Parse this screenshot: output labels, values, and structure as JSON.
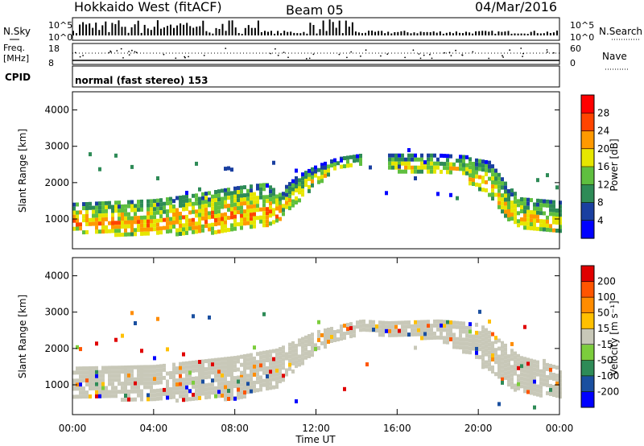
{
  "header": {
    "radar": "Hokkaido West (fitACF)",
    "beam": "Beam 05",
    "date": "04/Mar/2016"
  },
  "noise_panel": {
    "left_label": "N.Sky",
    "right_label": "N.Search",
    "ticks": [
      "10^5",
      "10^0"
    ]
  },
  "freq_panel": {
    "left_label_1": "Freq.",
    "left_label_2": "[MHz]",
    "right_label": "Nave",
    "left_ticks": [
      "18",
      "8"
    ],
    "right_ticks": [
      "60",
      "0"
    ]
  },
  "cpid": {
    "label": "CPID",
    "text": "normal (fast stereo) 153"
  },
  "colors": {
    "ground_scatter": "#c8c8b8",
    "power_scale": [
      "#0000ff",
      "#1a3fa0",
      "#2e8b57",
      "#5fbf3f",
      "#e6e600",
      "#ff9900",
      "#ff4400",
      "#ff0000"
    ],
    "velocity_scale": [
      "#e00000",
      "#ff5500",
      "#ff8c00",
      "#ffc000",
      "#c8c8b8",
      "#7ccd3c",
      "#2e8b57",
      "#1a4fa0",
      "#0000ff"
    ]
  },
  "chart_data": [
    {
      "type": "heatmap",
      "panel": "power",
      "ylabel": "Slant Range [km]",
      "ylim": [
        180,
        4500
      ],
      "yticks": [
        "4000",
        "3000",
        "2000",
        "1000"
      ],
      "colorbar": {
        "label": "Power [dB]",
        "range": [
          0,
          32
        ],
        "ticks": [
          "28",
          "24",
          "20",
          "16",
          "12",
          "8",
          "4"
        ]
      },
      "bands": [
        {
          "name": "near",
          "x": [
            0,
            2,
            4,
            6,
            8,
            9.5,
            10.2
          ],
          "lo": [
            700,
            600,
            620,
            640,
            700,
            800,
            1000
          ],
          "hi": [
            1450,
            1500,
            1550,
            1700,
            1900,
            2000,
            1700
          ],
          "level": 22
        },
        {
          "name": "arc",
          "x": [
            10.2,
            11,
            12,
            13,
            14.2
          ],
          "lo": [
            1100,
            1500,
            2000,
            2400,
            2550
          ],
          "hi": [
            1800,
            2200,
            2500,
            2700,
            2800
          ],
          "level": 18
        },
        {
          "name": "mid",
          "x": [
            15.4,
            16.5,
            18,
            19.5
          ],
          "lo": [
            2400,
            2300,
            2250,
            2200
          ],
          "hi": [
            2800,
            2800,
            2800,
            2750
          ],
          "level": 18
        },
        {
          "name": "right",
          "x": [
            19.5,
            20.5,
            21.3,
            22,
            24
          ],
          "lo": [
            2000,
            1700,
            1000,
            800,
            650
          ],
          "hi": [
            2700,
            2600,
            2000,
            1600,
            1500
          ],
          "level": 20
        }
      ]
    },
    {
      "type": "heatmap",
      "panel": "velocity",
      "ylabel": "Slant Range [km]",
      "xlabel": "Time UT",
      "ylim": [
        180,
        4500
      ],
      "yticks": [
        "4000",
        "3000",
        "2000",
        "1000"
      ],
      "xticks": [
        "00:00",
        "04:00",
        "08:00",
        "12:00",
        "16:00",
        "20:00",
        "00:00"
      ],
      "xlim": [
        0,
        24
      ],
      "colorbar": {
        "label": "Velocity [m s⁻¹]",
        "range": [
          -250,
          250
        ],
        "ticks": [
          "200",
          "100",
          "50",
          "15",
          "-15",
          "-50",
          "-100",
          "-200"
        ]
      },
      "ground_scatter_band": {
        "x": [
          0,
          4,
          8,
          10,
          12,
          14.2,
          15.5,
          18,
          20,
          22,
          24
        ],
        "lo": [
          700,
          600,
          650,
          1000,
          2000,
          2500,
          2400,
          2300,
          1700,
          800,
          700
        ],
        "hi": [
          1500,
          1550,
          1800,
          2000,
          2500,
          2800,
          2750,
          2800,
          2700,
          1800,
          1500
        ]
      }
    }
  ]
}
